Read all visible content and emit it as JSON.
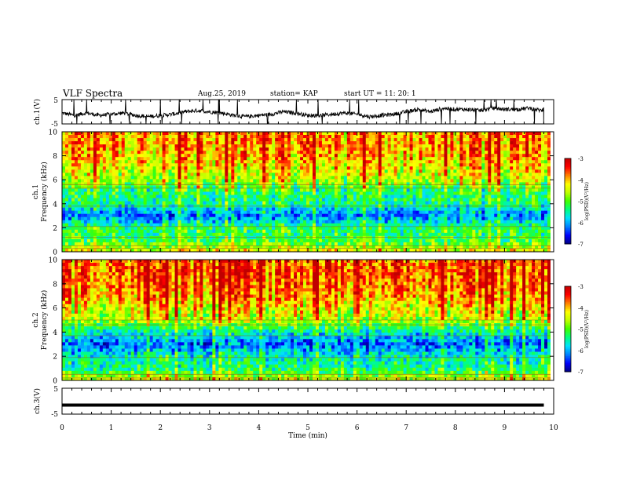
{
  "header": {
    "title": "VLF Spectra",
    "date": "Aug.25, 2019",
    "station": "station= KAP",
    "start": "start  UT =   11: 20: 1"
  },
  "chart_data": [
    {
      "type": "line",
      "title": "",
      "ylabel": "ch.1(V)",
      "xlim": [
        0,
        10
      ],
      "ylim": [
        -5,
        5
      ],
      "yticks": [
        "5",
        "-5"
      ],
      "series": [
        {
          "x": [
            0,
            0.25,
            0.5,
            0.75,
            1.0,
            1.25,
            1.5,
            1.75,
            2.0,
            2.25,
            2.5,
            2.75,
            3.0,
            3.25,
            3.5,
            3.75,
            4.0,
            4.25,
            4.5,
            4.75,
            5.0,
            5.25,
            5.5,
            5.75,
            6.0,
            6.25,
            6.5,
            6.75,
            7.0,
            7.25,
            7.5,
            7.75,
            8.0,
            8.25,
            8.5,
            8.75,
            9.0,
            9.25,
            9.5,
            9.75,
            9.8
          ],
          "values": [
            -0.5,
            -1.5,
            -0.5,
            -1.5,
            -1.0,
            -0.5,
            -1.5,
            -2.0,
            -1.5,
            -1.0,
            0.0,
            0.5,
            0.0,
            -0.5,
            -1.5,
            -2.0,
            -1.5,
            -1.0,
            0.0,
            -0.5,
            -1.5,
            -1.5,
            -1.0,
            -0.5,
            -1.0,
            -2.0,
            -1.5,
            -1.0,
            0.0,
            1.0,
            0.0,
            1.5,
            1.0,
            1.0,
            0.5,
            1.5,
            1.0,
            1.0,
            1.5,
            0.5,
            1.0
          ]
        }
      ]
    },
    {
      "type": "heatmap",
      "title": "",
      "ylabel": "ch.1\nFrequency  (kHz)",
      "xlim": [
        0,
        10
      ],
      "ylim": [
        0,
        10
      ],
      "yticks": [
        "0",
        "2",
        "4",
        "6",
        "8",
        "10"
      ],
      "freq_kHz": [
        0,
        1,
        2,
        3,
        4,
        5,
        6,
        7,
        8,
        9,
        10
      ],
      "mean_logPSD": [
        -4.3,
        -5.2,
        -5.3,
        -6.2,
        -5.4,
        -5.3,
        -4.6,
        -4.3,
        -4.0,
        -3.9,
        -3.9
      ],
      "colorbar": {
        "label": "log(PSD)(V²/Hz)",
        "ticks": [
          "-3",
          "-4",
          "-5",
          "-6",
          "-7"
        ],
        "range": [
          -7,
          -3
        ]
      }
    },
    {
      "type": "heatmap",
      "title": "",
      "ylabel": "ch.2\nFrequency  (kHz)",
      "xlim": [
        0,
        10
      ],
      "ylim": [
        0,
        10
      ],
      "yticks": [
        "0",
        "2",
        "4",
        "6",
        "8",
        "10"
      ],
      "freq_kHz": [
        0,
        1,
        2,
        3,
        4,
        5,
        6,
        7,
        8,
        9,
        10
      ],
      "mean_logPSD": [
        -4.4,
        -5.4,
        -5.6,
        -6.3,
        -5.6,
        -4.6,
        -4.3,
        -3.9,
        -3.7,
        -3.6,
        -3.7
      ],
      "colorbar": {
        "label": "log(PSD)(V²/Hz)",
        "ticks": [
          "-3",
          "-4",
          "-5",
          "-6",
          "-7"
        ],
        "range": [
          -7,
          -3
        ]
      }
    },
    {
      "type": "line",
      "title": "",
      "ylabel": "ch.3(V)",
      "xlabel": "Time  (min)",
      "xlim": [
        0,
        10
      ],
      "ylim": [
        -5,
        5
      ],
      "yticks": [
        "5",
        "-5"
      ],
      "xticks": [
        "0",
        "1",
        "2",
        "3",
        "4",
        "5",
        "6",
        "7",
        "8",
        "9",
        "10"
      ],
      "series": [
        {
          "x": [
            0,
            9.8
          ],
          "values": [
            -1.5,
            -1.5
          ]
        }
      ]
    }
  ],
  "colors": {
    "colormap": [
      "#000080",
      "#0000ff",
      "#0080ff",
      "#00e0ff",
      "#00ff80",
      "#40ff00",
      "#c0ff00",
      "#ffff00",
      "#ff8000",
      "#ff0000",
      "#c00000"
    ]
  }
}
